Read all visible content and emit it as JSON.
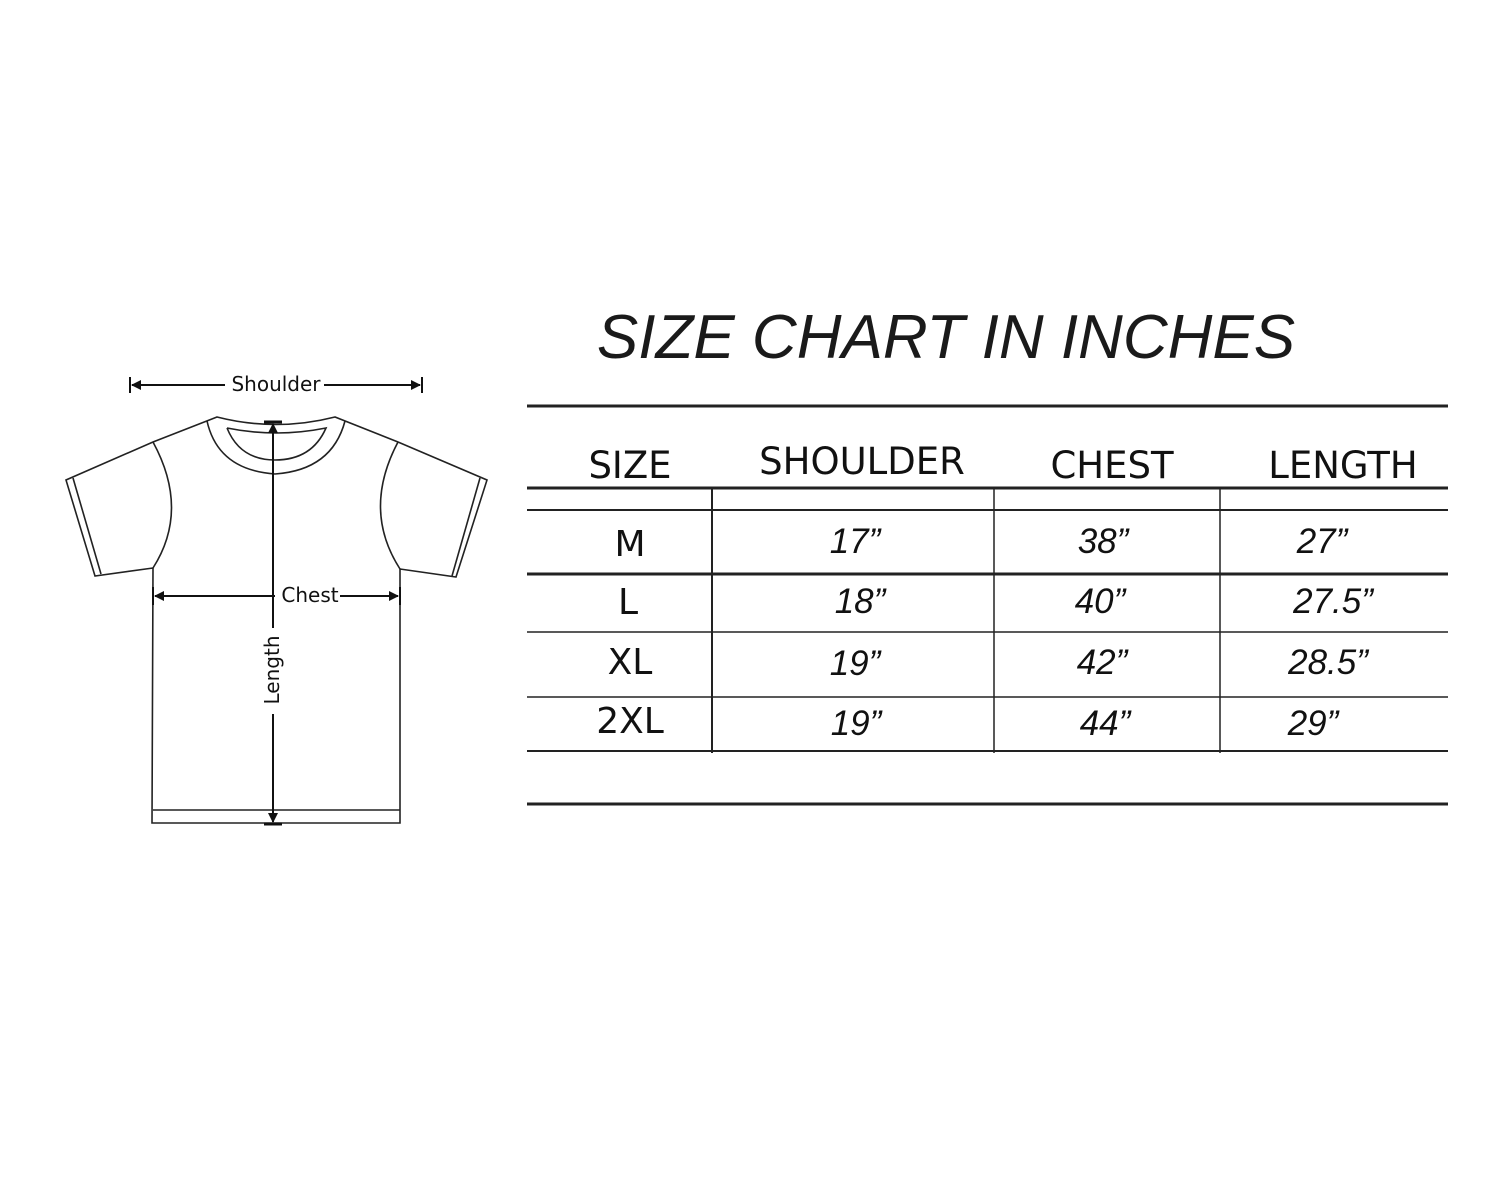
{
  "title": "SIZE CHART IN INCHES",
  "diagram": {
    "shoulder_label": "Shoulder",
    "chest_label": "Chest",
    "length_label": "Length"
  },
  "table": {
    "headers": [
      "SIZE",
      "SHOULDER",
      "CHEST",
      "LENGTH"
    ],
    "rows": [
      {
        "size": "M",
        "shoulder": "17”",
        "chest": "38”",
        "length": "27”"
      },
      {
        "size": "L",
        "shoulder": "18”",
        "chest": "40”",
        "length": "27.5”"
      },
      {
        "size": "XL",
        "shoulder": "19”",
        "chest": "42”",
        "length": "28.5”"
      },
      {
        "size": "2XL",
        "shoulder": "19”",
        "chest": "44”",
        "length": "29”"
      }
    ]
  }
}
